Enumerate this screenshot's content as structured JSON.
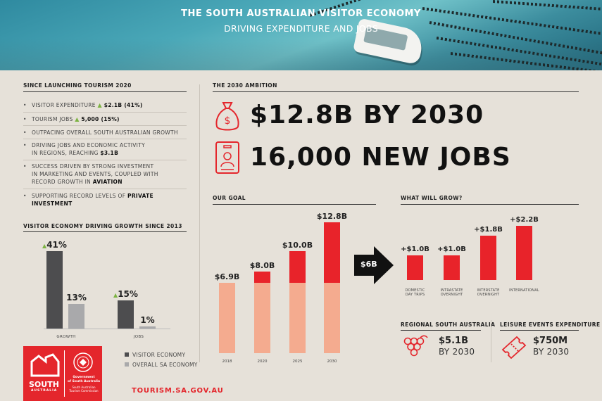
{
  "header": {
    "title": "THE SOUTH AUSTRALIAN VISITOR ECONOMY",
    "subtitle": "DRIVING EXPENDITURE AND JOBS"
  },
  "since_launch": {
    "heading": "SINCE LAUNCHING TOURISM 2020",
    "bullets": [
      {
        "text": "VISITOR EXPENDITURE",
        "highlight": "$2.1B (41%)"
      },
      {
        "text": "TOURISM JOBS",
        "highlight": "5,000 (15%)"
      },
      {
        "text": "OUTPACING OVERALL SOUTH AUSTRALIAN GROWTH"
      },
      {
        "line1": "DRIVING JOBS AND ECONOMIC ACTIVITY",
        "line2": "IN REGIONS, REACHING",
        "highlight": "$3.1B"
      },
      {
        "line1": "SUCCESS DRIVEN BY STRONG INVESTMENT",
        "line2": "IN MARKETING AND EVENTS, COUPLED WITH",
        "line3": "RECORD GROWTH IN",
        "highlight": "AVIATION"
      },
      {
        "text": "SUPPORTING RECORD LEVELS OF",
        "highlight": "PRIVATE INVESTMENT"
      }
    ]
  },
  "growth_chart": {
    "heading": "VISITOR ECONOMY DRIVING GROWTH SINCE 2013",
    "legend": [
      "VISITOR ECONOMY",
      "OVERALL SA ECONOMY"
    ],
    "colors": {
      "visitor": "#4d4d4f",
      "overall": "#a9a9ab"
    },
    "chart_data": {
      "type": "bar",
      "categories": [
        "GROWTH",
        "JOBS"
      ],
      "series": [
        {
          "name": "VISITOR ECONOMY",
          "values": [
            41,
            15
          ],
          "labels": [
            "41%",
            "15%"
          ]
        },
        {
          "name": "OVERALL SA ECONOMY",
          "values": [
            13,
            1
          ],
          "labels": [
            "13%",
            "1%"
          ]
        }
      ]
    }
  },
  "ambition": {
    "heading": "THE 2030 AMBITION",
    "line1": "$12.8B BY 2030",
    "line2": "16,000 NEW JOBS",
    "icons": [
      "money-bag-icon",
      "id-badge-icon"
    ]
  },
  "goal_chart": {
    "heading": "OUR GOAL",
    "chart_data": {
      "type": "bar",
      "categories": [
        "2018",
        "2020",
        "2025",
        "2030"
      ],
      "values": [
        6.9,
        8.0,
        10.0,
        12.8
      ],
      "labels": [
        "$6.9B",
        "$8.0B",
        "$10.0B",
        "$12.8B"
      ],
      "base": 6.9,
      "colors": {
        "base": "#f4ab8f",
        "growth": "#e8232a"
      }
    }
  },
  "arrow_label": "$6B",
  "grow_chart": {
    "heading": "WHAT WILL GROW?",
    "chart_data": {
      "type": "bar",
      "categories": [
        [
          "DOMESTIC",
          "DAY TRIPS"
        ],
        [
          "INTRASTATE",
          "OVERNIGHT"
        ],
        [
          "INTERSTATE",
          "OVERNIGHT"
        ],
        [
          "INTERNATIONAL"
        ]
      ],
      "values": [
        1.0,
        1.0,
        1.8,
        2.2
      ],
      "labels": [
        "+$1.0B",
        "+$1.0B",
        "+$1.8B",
        "+$2.2B"
      ]
    }
  },
  "regional": {
    "heading": "REGIONAL SOUTH AUSTRALIA",
    "value": "$5.1B",
    "sub": "BY 2030",
    "icon": "grapes-icon"
  },
  "events": {
    "heading": "LEISURE EVENTS EXPENDITURE",
    "value": "$750M",
    "sub": "BY 2030",
    "icon": "ticket-icon"
  },
  "logo": {
    "brand": "SOUTH",
    "brand_sub": "AUSTRALIA",
    "gov_line1": "Government",
    "gov_line2": "of South Australia",
    "gov_line3": "South Australian",
    "gov_line4": "Tourism Commission"
  },
  "url": "TOURISM.SA.GOV.AU"
}
